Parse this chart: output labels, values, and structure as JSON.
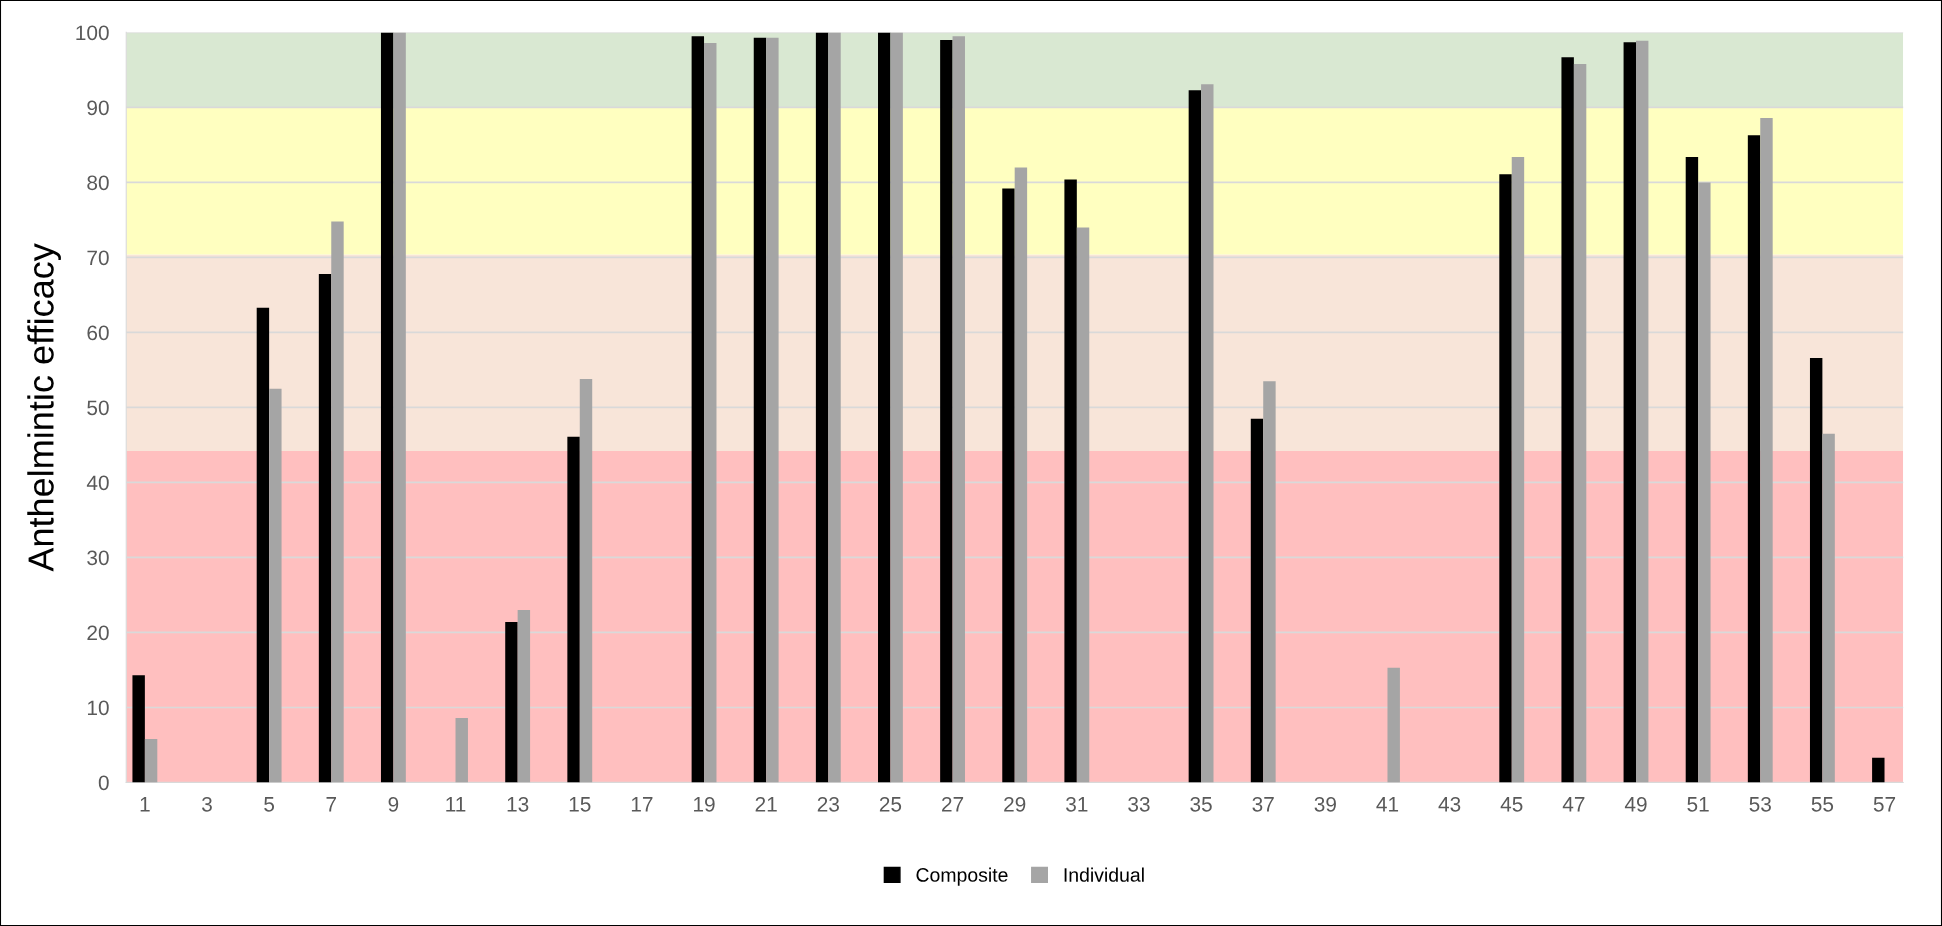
{
  "chart_data": {
    "type": "bar",
    "ylabel": "Anthelmintic efficacy",
    "categories": [
      "1",
      null,
      "3",
      null,
      "5",
      null,
      "7",
      null,
      "9",
      null,
      "11",
      null,
      "13",
      null,
      "15",
      null,
      "17",
      null,
      "19",
      null,
      "21",
      null,
      "23",
      null,
      "25",
      null,
      "27",
      null,
      "29",
      null,
      "31",
      null,
      "33",
      null,
      "35",
      null,
      "37",
      null,
      "39",
      null,
      "41",
      null,
      "43",
      null,
      "45",
      null,
      "47",
      null,
      "49",
      null,
      "51",
      null,
      "53",
      null,
      "55",
      null,
      "57"
    ],
    "series": [
      {
        "name": "Composite",
        "color": "#000000",
        "values": [
          14.3,
          null,
          null,
          null,
          63.3,
          null,
          67.8,
          null,
          100,
          null,
          null,
          null,
          21.4,
          null,
          46.1,
          null,
          null,
          null,
          99.5,
          null,
          99.3,
          null,
          100,
          null,
          100,
          null,
          99.0,
          null,
          79.2,
          null,
          80.4,
          null,
          null,
          null,
          92.3,
          null,
          48.5,
          null,
          null,
          null,
          null,
          null,
          null,
          null,
          81.1,
          null,
          96.7,
          null,
          98.7,
          null,
          83.4,
          null,
          86.3,
          null,
          56.6,
          null,
          3.3
        ]
      },
      {
        "name": "Individual",
        "color": "#a5a5a5",
        "values": [
          5.8,
          null,
          null,
          null,
          52.5,
          null,
          74.8,
          null,
          100,
          null,
          8.6,
          null,
          23.0,
          null,
          53.8,
          null,
          null,
          null,
          98.6,
          null,
          99.3,
          null,
          100,
          null,
          100,
          null,
          99.5,
          null,
          82.0,
          null,
          74.0,
          null,
          null,
          null,
          93.1,
          null,
          53.5,
          null,
          null,
          null,
          15.3,
          null,
          null,
          null,
          83.4,
          null,
          95.8,
          null,
          98.9,
          null,
          80.0,
          null,
          88.6,
          null,
          46.5,
          null,
          null
        ]
      }
    ],
    "ylim": [
      0,
      100
    ],
    "yticks": [
      0,
      10,
      20,
      30,
      40,
      50,
      60,
      70,
      80,
      90,
      100
    ],
    "grid": "y",
    "legend": "bottom",
    "bands": [
      {
        "axis": "y",
        "from": 0,
        "to": 44.2,
        "color": "#ffbfbf"
      },
      {
        "axis": "y",
        "from": 44.2,
        "to": 70.4,
        "color": "#f8e5d9"
      },
      {
        "axis": "y",
        "from": 70.4,
        "to": 90,
        "color": "#ffffc0"
      },
      {
        "axis": "y",
        "from": 90,
        "to": 100,
        "color": "#d9e8d2"
      }
    ]
  }
}
